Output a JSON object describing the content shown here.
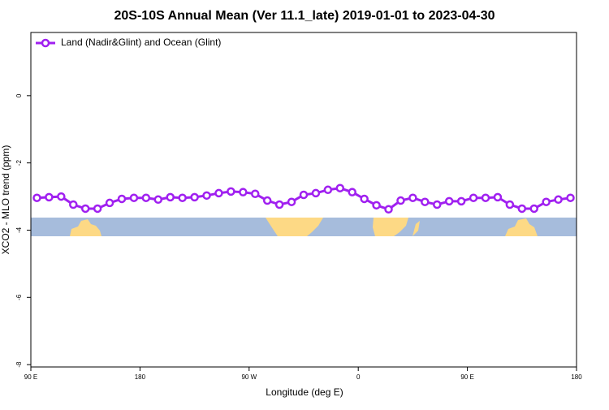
{
  "chart_data": {
    "type": "line",
    "title": "20S-10S Annual Mean (Ver 11.1_late)   2019-01-01 to 2023-04-30",
    "x_label": "Longitude (deg E)",
    "y_label": "XCO2 - MLO trend (ppm)",
    "x": [
      95,
      105,
      115,
      125,
      135,
      145,
      155,
      165,
      175,
      185,
      195,
      205,
      215,
      225,
      235,
      245,
      255,
      265,
      275,
      285,
      295,
      305,
      315,
      325,
      335,
      345,
      355,
      365,
      375,
      385,
      395,
      405,
      415,
      425,
      435,
      445,
      455,
      465,
      475,
      485,
      495,
      505,
      515,
      525,
      535
    ],
    "series": [
      {
        "name": "Land (Nadir&Glint) and Ocean (Glint)",
        "color": "#a020f0",
        "values": [
          -3.04,
          -3.02,
          -3.0,
          -3.24,
          -3.36,
          -3.36,
          -3.19,
          -3.07,
          -3.04,
          -3.04,
          -3.09,
          -3.02,
          -3.04,
          -3.02,
          -2.97,
          -2.9,
          -2.85,
          -2.87,
          -2.92,
          -3.12,
          -3.24,
          -3.16,
          -2.95,
          -2.9,
          -2.8,
          -2.75,
          -2.87,
          -3.07,
          -3.26,
          -3.38,
          -3.12,
          -3.04,
          -3.16,
          -3.24,
          -3.14,
          -3.14,
          -3.04,
          -3.04,
          -3.02,
          -3.24,
          -3.36,
          -3.36,
          -3.16,
          -3.09,
          -3.04
        ]
      }
    ],
    "xlim": [
      90,
      540
    ],
    "xticks": [
      {
        "value": 90,
        "label": "90 E"
      },
      {
        "value": 180,
        "label": "180"
      },
      {
        "value": 270,
        "label": "90 W"
      },
      {
        "value": 360,
        "label": "0"
      },
      {
        "value": 450,
        "label": "90 E"
      },
      {
        "value": 540,
        "label": "180"
      }
    ],
    "ylim": [
      -8.07,
      1.88
    ],
    "yticks": [
      0,
      -2,
      -4,
      -6,
      -8
    ],
    "legend": "top-left"
  }
}
